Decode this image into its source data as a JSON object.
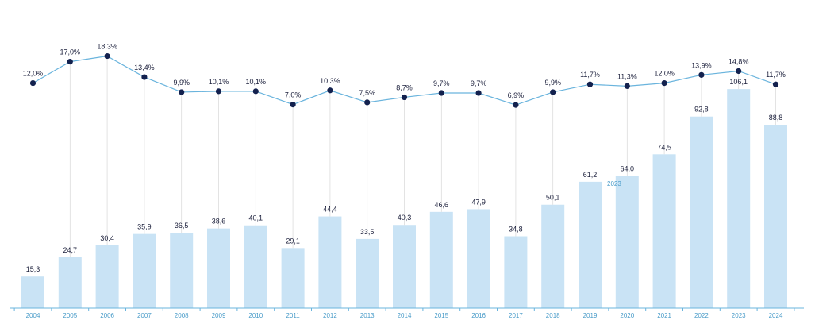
{
  "chart_data": {
    "type": "bar",
    "categories": [
      "2004",
      "2005",
      "2006",
      "2007",
      "2008",
      "2009",
      "2010",
      "2011",
      "2012",
      "2013",
      "2014",
      "2015",
      "2016",
      "2017",
      "2018",
      "2019",
      "2020",
      "2021",
      "2022",
      "2023",
      "2024"
    ],
    "series": [
      {
        "type": "bar",
        "values": [
          15.3,
          24.7,
          30.4,
          35.9,
          36.5,
          38.6,
          40.1,
          29.1,
          44.4,
          33.5,
          40.3,
          46.6,
          47.9,
          34.8,
          50.1,
          61.2,
          64.0,
          74.5,
          92.8,
          106.1,
          88.8
        ],
        "labels": [
          "15,3",
          "24,7",
          "30,4",
          "35,9",
          "36,5",
          "38,6",
          "40,1",
          "29,1",
          "44,4",
          "33,5",
          "40,3",
          "46,6",
          "47,9",
          "34,8",
          "50,1",
          "61,2",
          "64,0",
          "74,5",
          "92,8",
          "106,1",
          "88,8"
        ],
        "color": "#c9e3f5"
      },
      {
        "type": "line",
        "values": [
          12.0,
          17.0,
          18.3,
          13.4,
          9.9,
          10.1,
          10.1,
          7.0,
          10.3,
          7.5,
          8.7,
          9.7,
          9.7,
          6.9,
          9.9,
          11.7,
          11.3,
          12.0,
          13.9,
          14.8,
          11.7
        ],
        "labels": [
          "12,0%",
          "17,0%",
          "18,3%",
          "13,4%",
          "9,9%",
          "10,1%",
          "10,1%",
          "7,0%",
          "10,3%",
          "7,5%",
          "8,7%",
          "9,7%",
          "9,7%",
          "6,9%",
          "9,9%",
          "11,7%",
          "11,3%",
          "12,0%",
          "13,9%",
          "14,8%",
          "11,7%"
        ],
        "line_color": "#6ab4dd",
        "marker_color": "#13214e"
      }
    ],
    "stray_label": "2023",
    "axis_color": "#6ab4dd",
    "grid": false,
    "legend": "none"
  }
}
